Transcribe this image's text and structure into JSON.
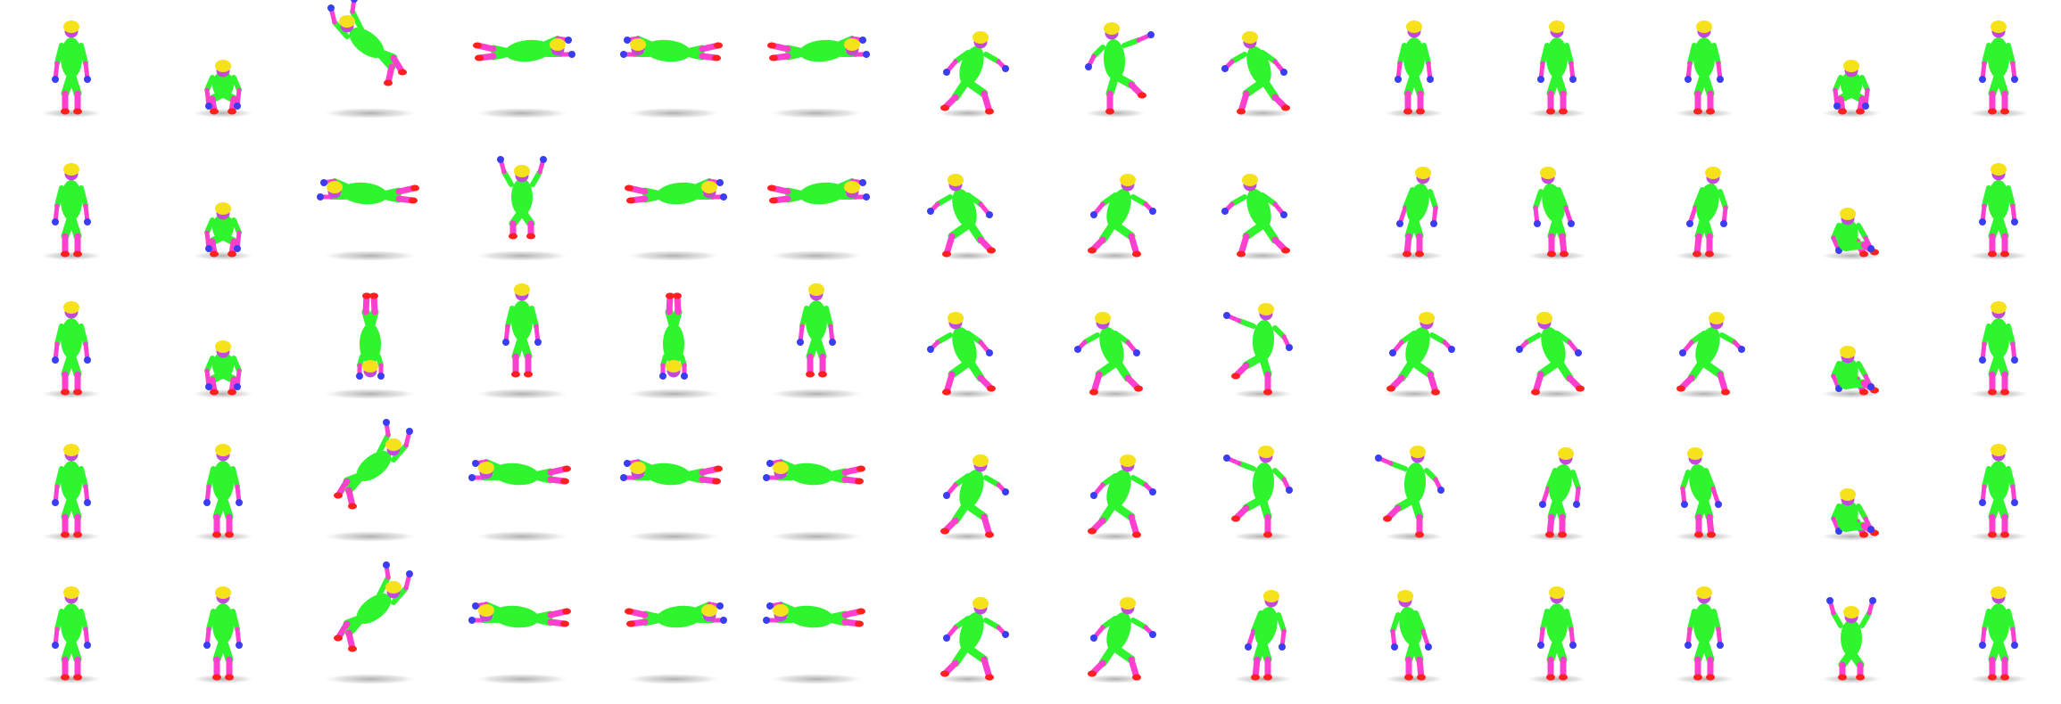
{
  "figure": {
    "rows": 5,
    "columns": 14,
    "background": "#ffffff",
    "colors": {
      "hair": "#f5e21b",
      "face": "#c24ad8",
      "torso": "#2ef52e",
      "upper_arm": "#2ef52e",
      "forearm": "#ff3fd0",
      "hand": "#3a3df2",
      "thigh": "#2ef52e",
      "shin": "#ff3fd0",
      "foot": "#ff1f1f",
      "shadow": "#8a8a8a"
    },
    "icon": "humanoid-figure",
    "pose_names": [
      "stand",
      "crouch",
      "sit",
      "lean-left",
      "lean-right",
      "leap-left",
      "leap-right",
      "dive-left",
      "dive-right",
      "lunge-left",
      "lunge-right",
      "invert",
      "reach-up",
      "kick-right",
      "kick-left"
    ],
    "columns_poses": [
      {
        "airborne": false,
        "poses": [
          "stand",
          "stand",
          "stand",
          "stand",
          "stand"
        ]
      },
      {
        "airborne": false,
        "poses": [
          "crouch",
          "crouch",
          "crouch",
          "stand",
          "stand"
        ]
      },
      {
        "airborne": true,
        "poses": [
          "leap-left",
          "dive-left",
          "invert",
          "leap-right",
          "leap-right"
        ]
      },
      {
        "airborne": true,
        "poses": [
          "dive-right",
          "reach-up",
          "stand",
          "dive-left",
          "dive-left"
        ]
      },
      {
        "airborne": true,
        "poses": [
          "dive-left",
          "dive-right",
          "invert",
          "dive-left",
          "dive-right"
        ]
      },
      {
        "airborne": true,
        "poses": [
          "dive-right",
          "dive-right",
          "stand",
          "dive-left",
          "dive-left"
        ]
      },
      {
        "airborne": false,
        "poses": [
          "lunge-right",
          "lunge-left",
          "lunge-left",
          "lunge-right",
          "lunge-right"
        ]
      },
      {
        "airborne": false,
        "poses": [
          "kick-right",
          "lunge-right",
          "lunge-left",
          "lunge-right",
          "lunge-right"
        ]
      },
      {
        "airborne": false,
        "poses": [
          "lunge-left",
          "lunge-left",
          "kick-left",
          "kick-left",
          "lean-right"
        ]
      },
      {
        "airborne": false,
        "poses": [
          "stand",
          "lean-right",
          "lunge-right",
          "kick-left",
          "lean-left"
        ]
      },
      {
        "airborne": false,
        "poses": [
          "stand",
          "lean-left",
          "lunge-left",
          "lean-right",
          "stand"
        ]
      },
      {
        "airborne": false,
        "poses": [
          "stand",
          "lean-right",
          "lunge-right",
          "lean-left",
          "stand"
        ]
      },
      {
        "airborne": false,
        "poses": [
          "crouch",
          "sit",
          "sit",
          "sit",
          "reach-up"
        ]
      },
      {
        "airborne": false,
        "poses": [
          "stand",
          "stand",
          "stand",
          "stand",
          "stand"
        ]
      }
    ]
  }
}
